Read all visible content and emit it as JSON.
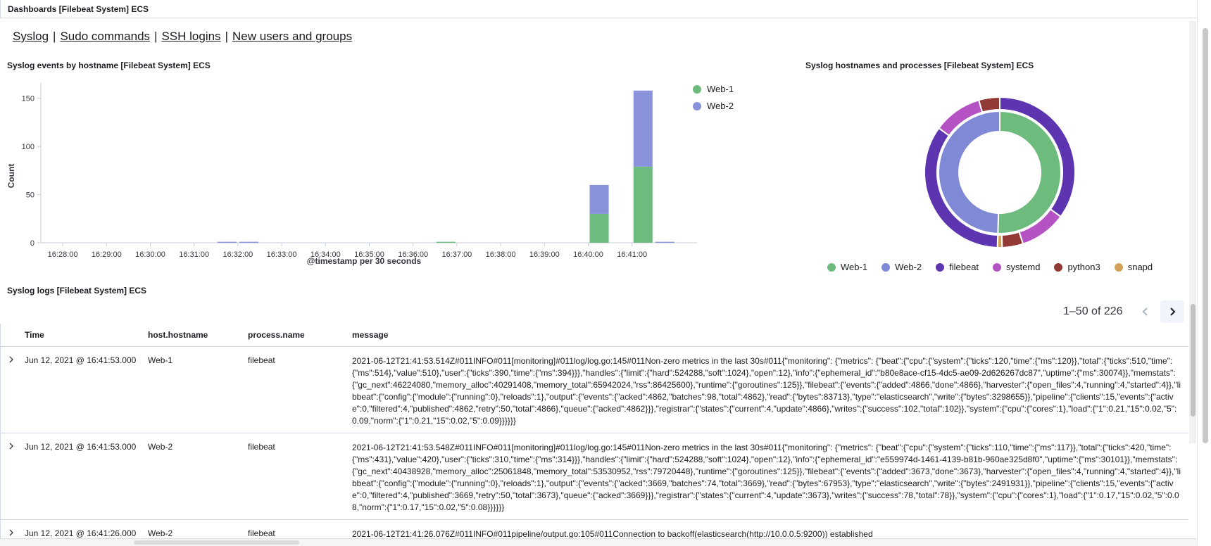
{
  "page": {
    "title": "Dashboards [Filebeat System] ECS"
  },
  "nav_links": [
    "Syslog",
    "Sudo commands",
    "SSH logins",
    "New users and groups"
  ],
  "nav_separator": "|",
  "histogram": {
    "title": "Syslog events by hostname [Filebeat System] ECS",
    "legend": [
      {
        "name": "Web-1",
        "color": "#6dbc7e"
      },
      {
        "name": "Web-2",
        "color": "#8a92dc"
      }
    ]
  },
  "donut": {
    "title": "Syslog hostnames and processes [Filebeat System] ECS",
    "legend": [
      {
        "name": "Web-1",
        "color": "#6dbc7e"
      },
      {
        "name": "Web-2",
        "color": "#7f89d6"
      },
      {
        "name": "filebeat",
        "color": "#5e35b1"
      },
      {
        "name": "systemd",
        "color": "#b552c4"
      },
      {
        "name": "python3",
        "color": "#923a35"
      },
      {
        "name": "snapd",
        "color": "#d4a05a"
      }
    ]
  },
  "chart_data": [
    {
      "type": "bar",
      "stacked": true,
      "title": "Syslog events by hostname [Filebeat System] ECS",
      "xlabel": "@timestamp per 30 seconds",
      "ylabel": "Count",
      "ylim": [
        0,
        160
      ],
      "yticks": [
        0,
        50,
        100,
        150
      ],
      "xticks": [
        "16:28:00",
        "16:29:00",
        "16:30:00",
        "16:31:00",
        "16:32:00",
        "16:33:00",
        "16:34:00",
        "16:35:00",
        "16:36:00",
        "16:37:00",
        "16:38:00",
        "16:39:00",
        "16:40:00",
        "16:41:00"
      ],
      "xstart": "16:27:30",
      "bucket_seconds": 30,
      "grid": false,
      "legend_position": "right",
      "categories": [
        "16:31:30",
        "16:32:00",
        "16:36:30",
        "16:40:00",
        "16:41:00",
        "16:41:30"
      ],
      "series": [
        {
          "name": "Web-1",
          "color": "#6dbc7e",
          "values": [
            0,
            0,
            1,
            30,
            79,
            0
          ]
        },
        {
          "name": "Web-2",
          "color": "#8a92dc",
          "values": [
            1,
            1,
            0,
            30,
            79,
            1
          ]
        }
      ]
    },
    {
      "type": "pie",
      "donut": true,
      "title": "Syslog hostnames and processes [Filebeat System] ECS",
      "legend_position": "bottom",
      "rings": [
        {
          "name": "host.hostname",
          "slices": [
            {
              "label": "Web-1",
              "value": 50.5,
              "color": "#6dbc7e"
            },
            {
              "label": "Web-2",
              "value": 49.5,
              "color": "#7f89d6"
            }
          ]
        },
        {
          "name": "process.name",
          "slices": [
            {
              "label": "filebeat",
              "parent": "Web-1",
              "value": 35.0,
              "color": "#5e35b1"
            },
            {
              "label": "systemd",
              "parent": "Web-1",
              "value": 10.0,
              "color": "#b552c4"
            },
            {
              "label": "python3",
              "parent": "Web-1",
              "value": 4.5,
              "color": "#923a35"
            },
            {
              "label": "snapd",
              "parent": "Web-1",
              "value": 1.0,
              "color": "#d4a05a"
            },
            {
              "label": "filebeat",
              "parent": "Web-2",
              "value": 34.5,
              "color": "#5e35b1"
            },
            {
              "label": "systemd",
              "parent": "Web-2",
              "value": 10.5,
              "color": "#b552c4"
            },
            {
              "label": "python3",
              "parent": "Web-2",
              "value": 4.5,
              "color": "#923a35"
            }
          ]
        }
      ]
    }
  ],
  "logs": {
    "title": "Syslog logs [Filebeat System] ECS",
    "pagination": "1–50 of 226",
    "columns": [
      "Time",
      "host.hostname",
      "process.name",
      "message"
    ],
    "rows": [
      {
        "time": "Jun 12, 2021 @ 16:41:53.000",
        "host": "Web-1",
        "process": "filebeat",
        "message": "2021-06-12T21:41:53.514Z#011INFO#011[monitoring]#011log/log.go:145#011Non-zero metrics in the last 30s#011{\"monitoring\": {\"metrics\": {\"beat\":{\"cpu\":{\"system\":{\"ticks\":120,\"time\":{\"ms\":120}},\"total\":{\"ticks\":510,\"time\":{\"ms\":514},\"value\":510},\"user\":{\"ticks\":390,\"time\":{\"ms\":394}}},\"handles\":{\"limit\":{\"hard\":524288,\"soft\":1024},\"open\":12},\"info\":{\"ephemeral_id\":\"b80e8ace-cf15-4dc5-ae09-2d626267dc87\",\"uptime\":{\"ms\":30074}},\"memstats\":{\"gc_next\":46224080,\"memory_alloc\":40291408,\"memory_total\":65942024,\"rss\":86425600},\"runtime\":{\"goroutines\":125}},\"filebeat\":{\"events\":{\"added\":4866,\"done\":4866},\"harvester\":{\"open_files\":4,\"running\":4,\"started\":4}},\"libbeat\":{\"config\":{\"module\":{\"running\":0},\"reloads\":1},\"output\":{\"events\":{\"acked\":4862,\"batches\":98,\"total\":4862},\"read\":{\"bytes\":83713},\"type\":\"elasticsearch\",\"write\":{\"bytes\":3298655}},\"pipeline\":{\"clients\":15,\"events\":{\"active\":0,\"filtered\":4,\"published\":4862,\"retry\":50,\"total\":4866},\"queue\":{\"acked\":4862}}},\"registrar\":{\"states\":{\"current\":4,\"update\":4866},\"writes\":{\"success\":102,\"total\":102}},\"system\":{\"cpu\":{\"cores\":1},\"load\":{\"1\":0.21,\"15\":0.02,\"5\":0.09,\"norm\":{\"1\":0.21,\"15\":0.02,\"5\":0.09}}}}}}"
      },
      {
        "time": "Jun 12, 2021 @ 16:41:53.000",
        "host": "Web-2",
        "process": "filebeat",
        "message": "2021-06-12T21:41:53.548Z#011INFO#011[monitoring]#011log/log.go:145#011Non-zero metrics in the last 30s#011{\"monitoring\": {\"metrics\": {\"beat\":{\"cpu\":{\"system\":{\"ticks\":110,\"time\":{\"ms\":117}},\"total\":{\"ticks\":420,\"time\":{\"ms\":431},\"value\":420},\"user\":{\"ticks\":310,\"time\":{\"ms\":314}}},\"handles\":{\"limit\":{\"hard\":524288,\"soft\":1024},\"open\":12},\"info\":{\"ephemeral_id\":\"e559974d-1461-4139-b81b-960ae325d8f0\",\"uptime\":{\"ms\":30101}},\"memstats\":{\"gc_next\":40438928,\"memory_alloc\":25061848,\"memory_total\":53530952,\"rss\":79720448},\"runtime\":{\"goroutines\":125}},\"filebeat\":{\"events\":{\"added\":3673,\"done\":3673},\"harvester\":{\"open_files\":4,\"running\":4,\"started\":4}},\"libbeat\":{\"config\":{\"module\":{\"running\":0},\"reloads\":1},\"output\":{\"events\":{\"acked\":3669,\"batches\":74,\"total\":3669},\"read\":{\"bytes\":67953},\"type\":\"elasticsearch\",\"write\":{\"bytes\":2491931}},\"pipeline\":{\"clients\":15,\"events\":{\"active\":0,\"filtered\":4,\"published\":3669,\"retry\":50,\"total\":3673},\"queue\":{\"acked\":3669}}},\"registrar\":{\"states\":{\"current\":4,\"update\":3673},\"writes\":{\"success\":78,\"total\":78}},\"system\":{\"cpu\":{\"cores\":1},\"load\":{\"1\":0.17,\"15\":0.02,\"5\":0.08,\"norm\":{\"1\":0.17,\"15\":0.02,\"5\":0.08}}}}}}"
      },
      {
        "time": "Jun 12, 2021 @ 16:41:26.000",
        "host": "Web-2",
        "process": "filebeat",
        "message": "2021-06-12T21:41:26.076Z#011INFO#011pipeline/output.go:105#011Connection to backoff(elasticsearch(http://10.0.0.5:9200)) established"
      }
    ]
  }
}
